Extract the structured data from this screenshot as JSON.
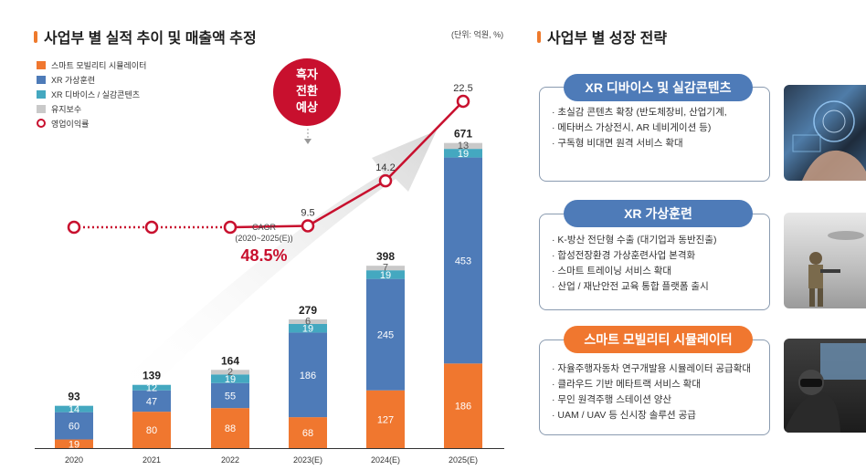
{
  "left_title": "사업부 별 실적 추이 및 매출액 추정",
  "right_title": "사업부 별 성장 전략",
  "unit": "(단위: 억원, %)",
  "legend": [
    {
      "label": "스마트 모빌리티 시뮬레이터",
      "color": "#f0772f"
    },
    {
      "label": "XR 가상훈련",
      "color": "#4e7bb8"
    },
    {
      "label": "XR 디바이스 / 실감콘텐츠",
      "color": "#44a8c0"
    },
    {
      "label": "유지보수",
      "color": "#c9c9c9"
    },
    {
      "label": "영업이익률",
      "color": "#c8102e"
    }
  ],
  "callout": {
    "line1": "흑자",
    "line2": "전환",
    "line3": "예상"
  },
  "cagr": {
    "label1": "CAGR",
    "label2": "(2020~2025(E))",
    "value": "48.5%"
  },
  "chart_data": {
    "type": "bar",
    "stacked": true,
    "categories": [
      "2020",
      "2021",
      "2022",
      "2023(E)",
      "2024(E)",
      "2025(E)"
    ],
    "series": [
      {
        "name": "스마트 모빌리티 시뮬레이터",
        "values": [
          19,
          80,
          88,
          68,
          127,
          186
        ],
        "color": "#f0772f"
      },
      {
        "name": "XR 가상훈련",
        "values": [
          60,
          47,
          55,
          186,
          245,
          453
        ],
        "color": "#4e7bb8"
      },
      {
        "name": "XR 디바이스 / 실감콘텐츠",
        "values": [
          14,
          12,
          19,
          19,
          19,
          19
        ],
        "color": "#44a8c0"
      },
      {
        "name": "유지보수",
        "values": [
          null,
          null,
          2,
          6,
          7,
          13
        ],
        "color": "#c9c9c9"
      }
    ],
    "totals": [
      93,
      139,
      164,
      279,
      398,
      671
    ],
    "line": {
      "name": "영업이익률",
      "values": [
        null,
        null,
        null,
        9.5,
        14.2,
        22.5
      ],
      "labels": [
        "",
        "",
        "",
        "9.5",
        "14.2",
        "22.5"
      ],
      "color": "#c8102e"
    }
  },
  "cards": [
    {
      "title": "XR 디바이스 및 실감콘텐츠",
      "color": "#4e7bb8",
      "items": [
        "초실감 콘텐츠 확장 (반도체장비, 산업기계,",
        "메타버스 가상전시, AR 네비게이션 등)",
        "구독형 비대면 원격 서비스 확대"
      ]
    },
    {
      "title": "XR 가상훈련",
      "color": "#4e7bb8",
      "items": [
        "K-방산 전단형 수출 (대기업과 동반진출)",
        "합성전장환경 가상훈련사업 본격화",
        "스마트 트레이닝 서비스 확대",
        "산업 / 재난안전 교육 통합 플랫폼 출시"
      ]
    },
    {
      "title": "스마트 모빌리티 시뮬레이터",
      "color": "#f0772f",
      "items": [
        "자율주행자동차 연구개발용 시뮬레이터 공급확대",
        "클라우드 기반 메타트랙 서비스 확대",
        "무인 원격주행 스테이션 양산",
        "UAM / UAV 등 신시장 솔루션 공급"
      ]
    }
  ]
}
